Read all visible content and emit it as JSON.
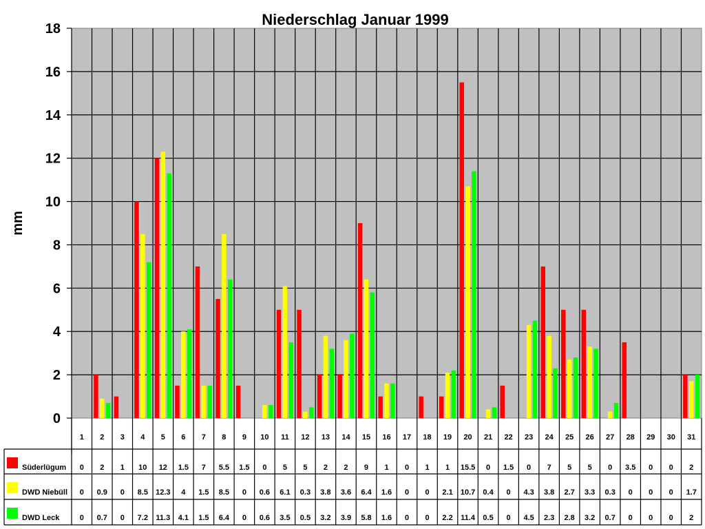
{
  "chart_data": {
    "type": "bar",
    "title": "Niederschlag Januar 1999",
    "xlabel": "",
    "ylabel": "mm",
    "ylim": [
      0,
      18
    ],
    "yticks": [
      0,
      2,
      4,
      6,
      8,
      10,
      12,
      14,
      16,
      18
    ],
    "grid": true,
    "legend_position": "data-table-left",
    "categories": [
      "1",
      "2",
      "3",
      "4",
      "5",
      "6",
      "7",
      "8",
      "9",
      "10",
      "11",
      "12",
      "13",
      "14",
      "15",
      "16",
      "17",
      "18",
      "19",
      "20",
      "21",
      "22",
      "23",
      "24",
      "25",
      "26",
      "27",
      "28",
      "29",
      "30",
      "31"
    ],
    "series": [
      {
        "name": "Süderlügum",
        "color": "#ff0000",
        "values": [
          0,
          2,
          1,
          10,
          12,
          1.5,
          7,
          5.5,
          1.5,
          0,
          5,
          5,
          2,
          2,
          9,
          1,
          0,
          1,
          1,
          15.5,
          0,
          1.5,
          0,
          7,
          5,
          5,
          0,
          3.5,
          0,
          0,
          2
        ]
      },
      {
        "name": "DWD Niebüll",
        "color": "#ffff00",
        "values": [
          0,
          0.9,
          0,
          8.5,
          12.3,
          4,
          1.5,
          8.5,
          0,
          0.6,
          6.1,
          0.3,
          3.8,
          3.6,
          6.4,
          1.6,
          0,
          0,
          2.1,
          10.7,
          0.4,
          0,
          4.3,
          3.8,
          2.7,
          3.3,
          0.3,
          0,
          0,
          0,
          1.7
        ]
      },
      {
        "name": "DWD Leck",
        "color": "#00ff00",
        "values": [
          0,
          0.7,
          0,
          7.2,
          11.3,
          4.1,
          1.5,
          6.4,
          0,
          0.6,
          3.5,
          0.5,
          3.2,
          3.9,
          5.8,
          1.6,
          0,
          0,
          2.2,
          11.4,
          0.5,
          0,
          4.5,
          2.3,
          2.8,
          3.2,
          0.7,
          0,
          0,
          0,
          2
        ]
      }
    ]
  },
  "style": {
    "plot_background": "#c0c0c0",
    "gridline_color": "#000000",
    "border_color": "#808080"
  }
}
